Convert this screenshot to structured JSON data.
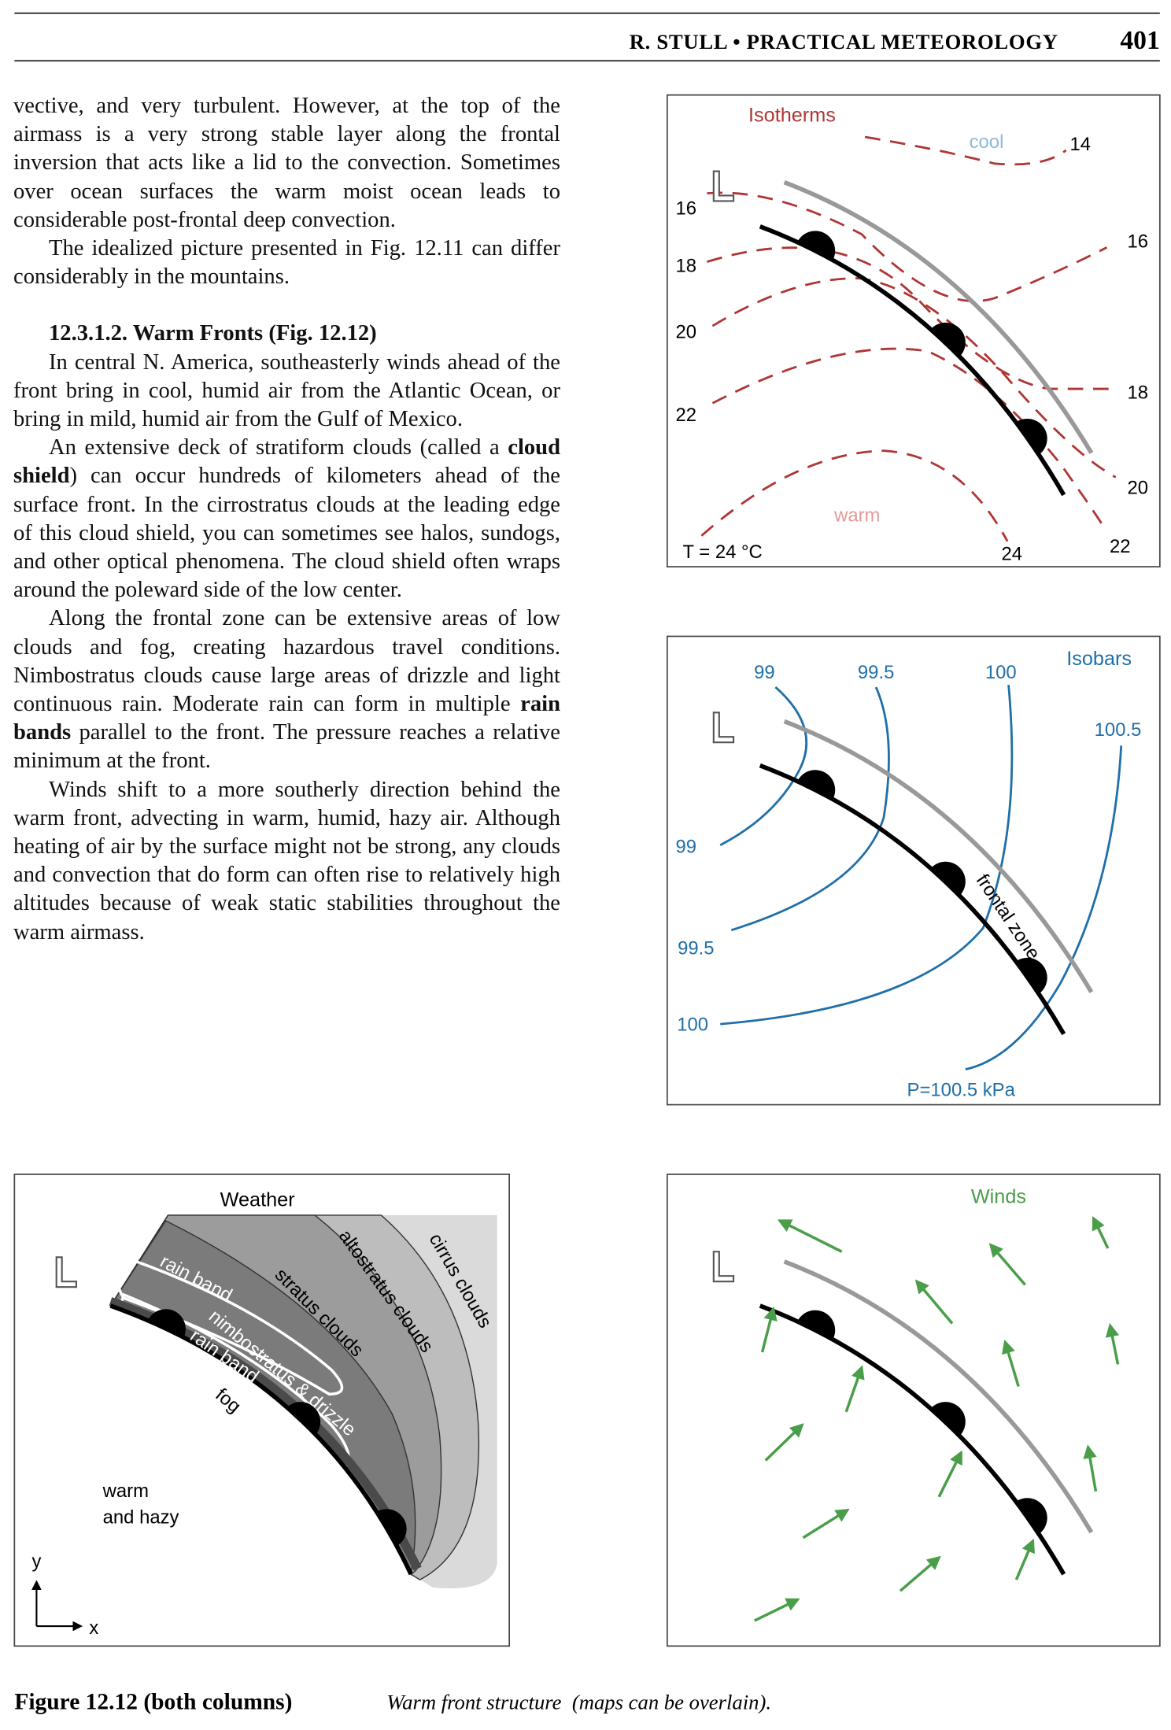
{
  "header": {
    "running_title": "R. STULL • PRACTICAL METEOROLOGY",
    "page_number": "401"
  },
  "body": {
    "before": [
      {
        "runs": [
          {
            "text": "vective, and very turbulent.  However, at the top of the airmass is a very strong stable layer along the frontal inversion that acts like a lid to the convection.  Sometimes over ocean surfaces the warm moist ocean leads to considerable post-frontal deep convection."
          }
        ]
      },
      {
        "runs": [
          {
            "text": "The idealized picture presented in Fig. 12.11 can differ considerably in the mountains."
          }
        ]
      }
    ],
    "heading": "12.3.1.2. Warm Fronts  (Fig. 12.12)",
    "after": [
      {
        "runs": [
          {
            "text": "In central N. America, southeasterly winds ahead of the front bring in cool, humid air from the Atlantic Ocean, or bring in mild, humid air from the Gulf of Mexico."
          }
        ]
      },
      {
        "runs": [
          {
            "text": "An extensive deck of stratiform clouds (called a "
          },
          {
            "text": "cloud shield",
            "bold": true
          },
          {
            "text": ") can occur hundreds of kilometers ahead of the surface front.  In the cirrostratus clouds at the leading edge of this cloud shield, you can sometimes see halos, sundogs, and other optical phenomena.  The cloud shield often wraps around the poleward side of the low center."
          }
        ]
      },
      {
        "runs": [
          {
            "text": "Along the frontal zone can be extensive areas of low clouds and fog, creating hazardous travel conditions.  Nimbostratus clouds cause large areas of drizzle and light continuous rain.  Moderate rain can form in multiple "
          },
          {
            "text": "rain bands",
            "bold": true
          },
          {
            "text": " parallel to the front.  The pressure reaches a relative minimum at the front."
          }
        ]
      },
      {
        "runs": [
          {
            "text": "Winds shift to a more southerly direction behind the warm front, advecting in warm, humid, hazy air.  Although heating of air by the surface might not be strong, any clouds and convection that do form can often rise to relatively high altitudes because of weak static stabilities throughout the warm airmass."
          }
        ]
      }
    ]
  },
  "figures": {
    "isotherms": {
      "title": "Isotherms",
      "labels": [
        "cool",
        "14",
        "16",
        "16",
        "18",
        "18",
        "20",
        "20",
        "22",
        "22",
        "warm",
        "T = 24 °C",
        "24"
      ]
    },
    "isobars": {
      "title": "Isobars",
      "labels": [
        "99",
        "99.5",
        "100",
        "100.5",
        "99",
        "99.5",
        "100",
        "frontal zone",
        "P=100.5  kPa"
      ]
    },
    "weather": {
      "title": "Weather",
      "labels": [
        "cirrus clouds",
        "altostratus clouds",
        "stratus clouds",
        "rain band",
        "nimbostratus & drizzle",
        "rain band",
        "fog",
        "warm",
        "and hazy",
        "y",
        "x"
      ]
    },
    "winds": {
      "title": "Winds"
    }
  },
  "caption": {
    "label": "Figure 12.12 (both columns)",
    "text": "Warm front structure  (maps can be overlain)."
  }
}
